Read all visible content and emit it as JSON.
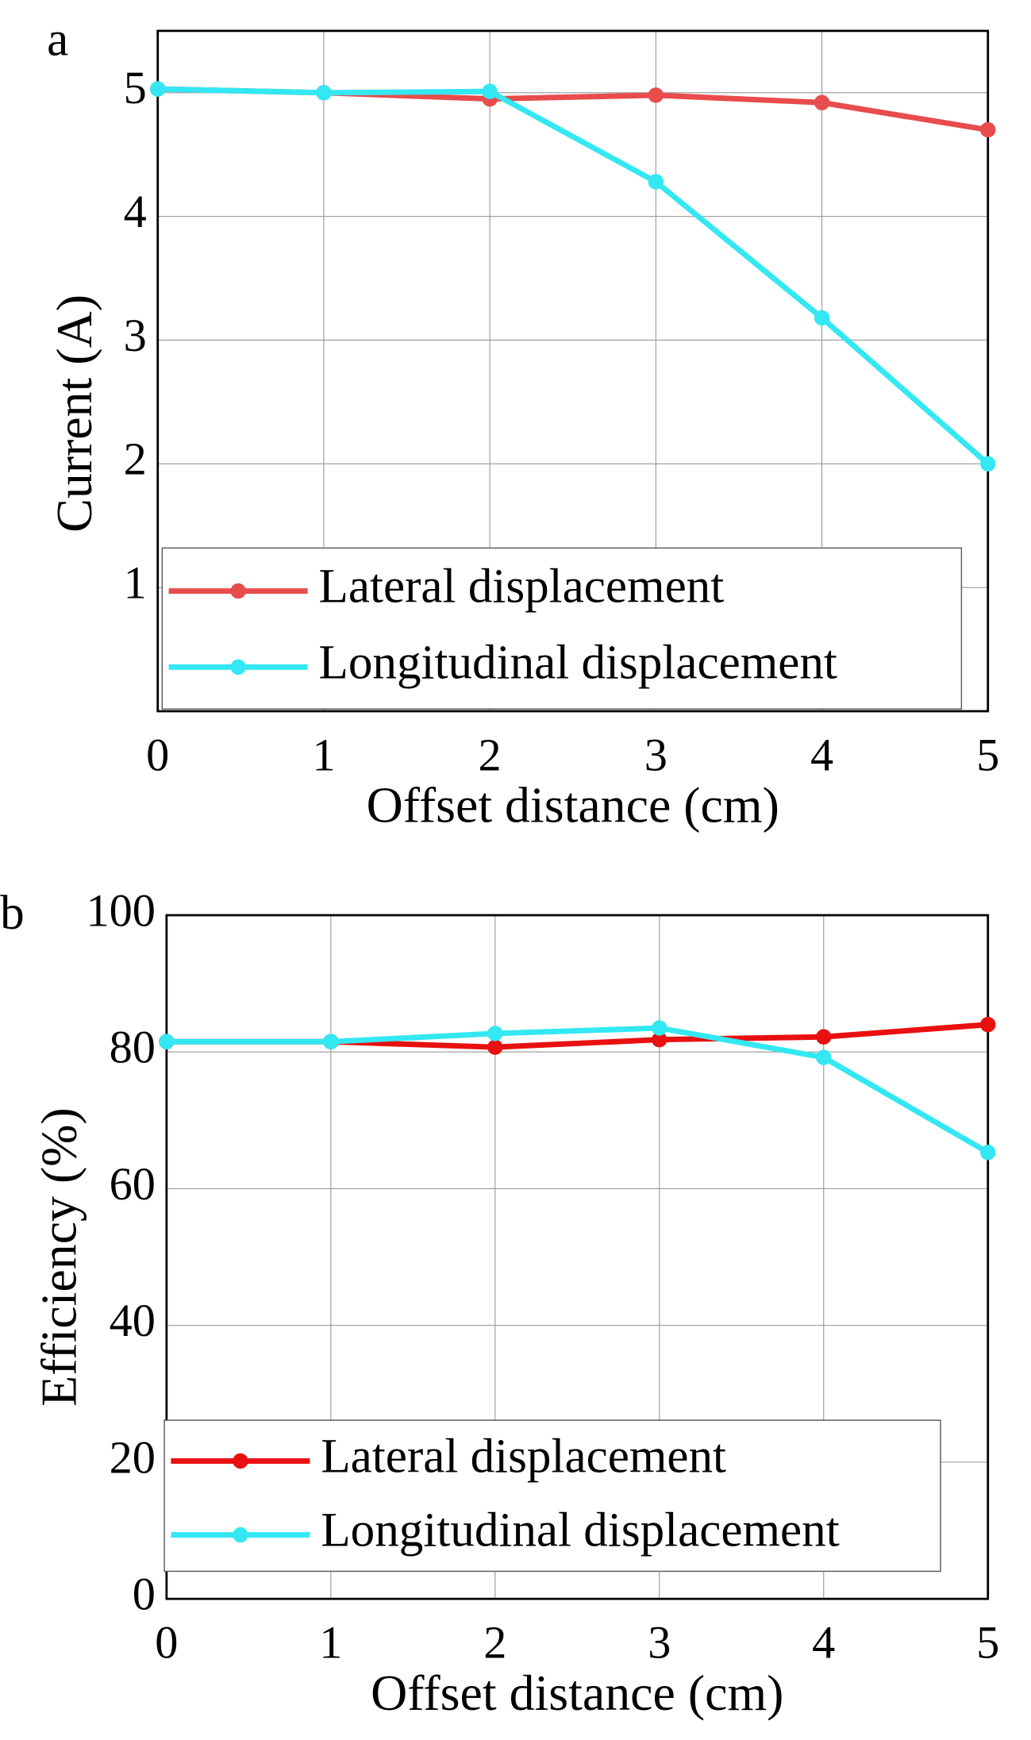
{
  "chart_data": [
    {
      "type": "line",
      "panel_label": "a",
      "xlabel": "Offset distance (cm)",
      "ylabel": "Current (A)",
      "x": [
        0,
        1,
        2,
        3,
        4,
        5
      ],
      "series": [
        {
          "name": "Lateral displacement",
          "color": "#e84c4c",
          "values": [
            5.03,
            5.0,
            4.95,
            4.98,
            4.92,
            4.7
          ]
        },
        {
          "name": "Longitudinal displacement",
          "color": "#33e8f2",
          "values": [
            5.03,
            5.0,
            5.01,
            4.28,
            3.18,
            2.0
          ]
        }
      ],
      "xlim": [
        0,
        5
      ],
      "ylim": [
        0,
        5.5
      ],
      "xticks": [
        0,
        1,
        2,
        3,
        4,
        5
      ],
      "yticks": [
        1,
        2,
        3,
        4,
        5
      ],
      "grid": true,
      "legend": "lower left"
    },
    {
      "type": "line",
      "panel_label": "b",
      "xlabel": "Offset distance (cm)",
      "ylabel": "Efficiency (%)",
      "x": [
        0,
        1,
        2,
        3,
        4,
        5
      ],
      "series": [
        {
          "name": "Lateral displacement",
          "color": "#e81010",
          "values": [
            81.5,
            81.5,
            80.7,
            81.8,
            82.2,
            84.0
          ]
        },
        {
          "name": "Longitudinal displacement",
          "color": "#33e8f2",
          "values": [
            81.5,
            81.5,
            82.7,
            83.5,
            79.2,
            65.3
          ]
        }
      ],
      "xlim": [
        0,
        5
      ],
      "ylim": [
        0,
        100
      ],
      "xticks": [
        0,
        1,
        2,
        3,
        4,
        5
      ],
      "yticks": [
        0,
        20,
        40,
        60,
        80,
        100
      ],
      "grid": true,
      "legend": "lower left"
    }
  ]
}
